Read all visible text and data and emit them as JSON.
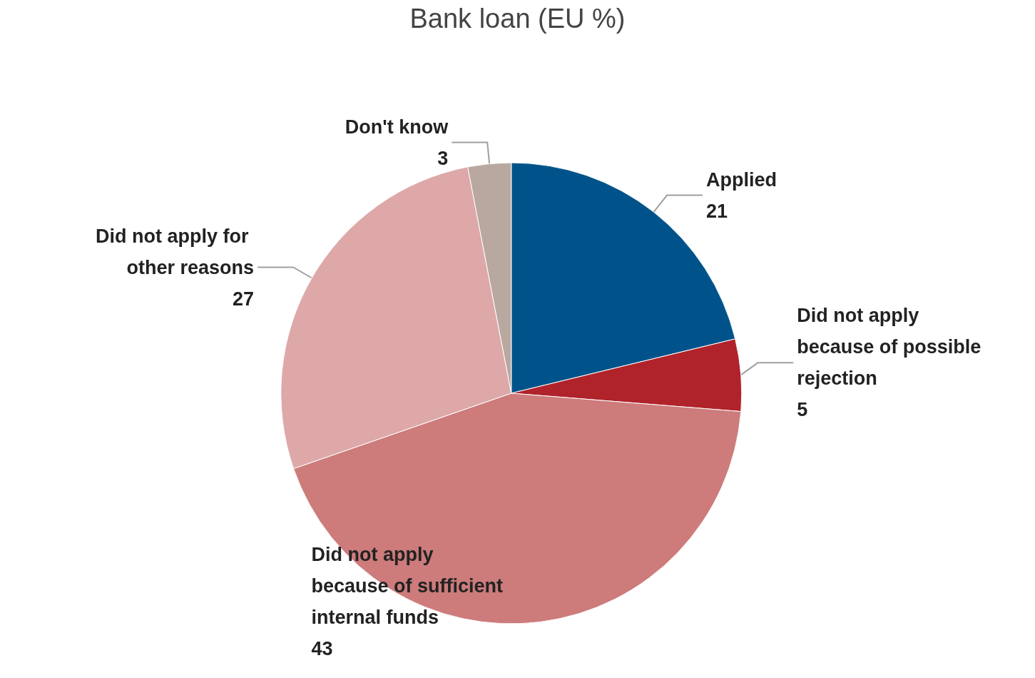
{
  "chart_data": {
    "type": "pie",
    "title": "Bank loan (EU %)",
    "categories": [
      "Applied",
      "Did not apply because of possible rejection",
      "Did not apply because of sufficient internal funds",
      "Did not apply for other reasons",
      "Don't know"
    ],
    "values": [
      21,
      5,
      43,
      27,
      3
    ],
    "colors": [
      "#00538a",
      "#b0232a",
      "#cd7b7b",
      "#dea8a8",
      "#b8a8a0"
    ],
    "data_labels": true,
    "legend": false
  }
}
